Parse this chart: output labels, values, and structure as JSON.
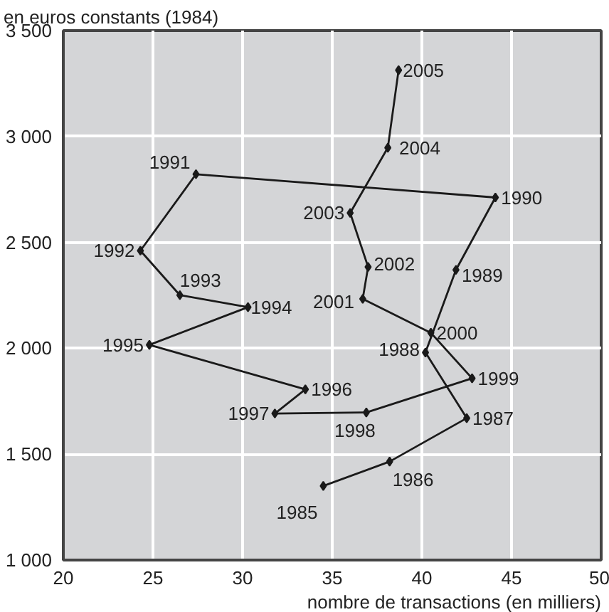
{
  "chart_data": {
    "type": "line",
    "ylabel": "en euros constants (1984)",
    "xlabel": "nombre de transactions (en milliers)",
    "x": [
      34.5,
      38.2,
      42.5,
      40.2,
      41.9,
      44.1,
      27.4,
      24.3,
      26.5,
      30.3,
      24.8,
      33.5,
      31.8,
      36.9,
      42.8,
      40.5,
      36.7,
      37.0,
      36.0,
      38.1,
      38.7
    ],
    "series": [
      {
        "color": "#1a1a1a",
        "values": [
          1350,
          1465,
          1670,
          1980,
          2370,
          2712,
          2822,
          2461,
          2251,
          2194,
          2016,
          1806,
          1692,
          1697,
          1858,
          2073,
          2233,
          2384,
          2639,
          2947,
          3313
        ]
      }
    ],
    "annotations": [
      {
        "text": "1985",
        "x": 34.5,
        "y": 1350
      },
      {
        "text": "1986",
        "x": 38.2,
        "y": 1465
      },
      {
        "text": "1987",
        "x": 42.5,
        "y": 1670
      },
      {
        "text": "1988",
        "x": 40.2,
        "y": 1980
      },
      {
        "text": "1989",
        "x": 41.9,
        "y": 2370
      },
      {
        "text": "1990",
        "x": 44.1,
        "y": 2712
      },
      {
        "text": "1991",
        "x": 27.4,
        "y": 2822
      },
      {
        "text": "1992",
        "x": 24.3,
        "y": 2461
      },
      {
        "text": "1993",
        "x": 26.5,
        "y": 2251
      },
      {
        "text": "1994",
        "x": 30.3,
        "y": 2194
      },
      {
        "text": "1995",
        "x": 24.8,
        "y": 2016
      },
      {
        "text": "1996",
        "x": 33.5,
        "y": 1806
      },
      {
        "text": "1997",
        "x": 31.8,
        "y": 1692
      },
      {
        "text": "1998",
        "x": 36.9,
        "y": 1697
      },
      {
        "text": "1999",
        "x": 42.8,
        "y": 1858
      },
      {
        "text": "2000",
        "x": 40.5,
        "y": 2073
      },
      {
        "text": "2001",
        "x": 36.7,
        "y": 2233
      },
      {
        "text": "2002",
        "x": 37.0,
        "y": 2384
      },
      {
        "text": "2003",
        "x": 36.0,
        "y": 2639
      },
      {
        "text": "2004",
        "x": 38.1,
        "y": 2947
      },
      {
        "text": "2005",
        "x": 38.7,
        "y": 3313
      }
    ],
    "xlim": [
      20,
      50
    ],
    "xticks": [
      20,
      25,
      30,
      35,
      40,
      45,
      50
    ],
    "ylim": [
      1000,
      3500
    ],
    "yticks": [
      {
        "value": 1000,
        "label": "1 000"
      },
      {
        "value": 1500,
        "label": "1 500"
      },
      {
        "value": 2000,
        "label": "2 000"
      },
      {
        "value": 2500,
        "label": "2 500"
      },
      {
        "value": 3000,
        "label": "3 000"
      },
      {
        "value": 3500,
        "label": "3 500"
      }
    ],
    "grid": true,
    "marker": "diamond",
    "line_style": "solid"
  }
}
